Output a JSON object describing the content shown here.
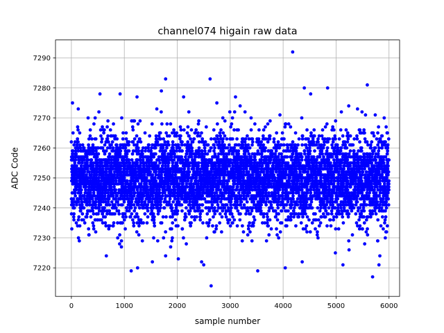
{
  "chart_data": {
    "type": "scatter",
    "title": "channel074 higain raw data",
    "xlabel": "sample number",
    "ylabel": "ADC Code",
    "xlim": [
      -300,
      6200
    ],
    "ylim": [
      7210.5,
      7296
    ],
    "xticks": [
      0,
      1000,
      2000,
      3000,
      4000,
      5000,
      6000
    ],
    "yticks": [
      7220,
      7230,
      7240,
      7250,
      7260,
      7270,
      7280,
      7290
    ],
    "grid": true,
    "legend": "none",
    "marker_color": "#0000ff",
    "num_samples": 6000,
    "y_center": 7250,
    "y_spread_sd": 7.5,
    "notable_points": [
      {
        "x": 4180,
        "y": 7292
      },
      {
        "x": 2620,
        "y": 7283
      },
      {
        "x": 1780,
        "y": 7283
      },
      {
        "x": 5590,
        "y": 7281
      },
      {
        "x": 4400,
        "y": 7280
      },
      {
        "x": 4840,
        "y": 7280
      },
      {
        "x": 1700,
        "y": 7279
      },
      {
        "x": 4520,
        "y": 7278
      },
      {
        "x": 920,
        "y": 7278
      },
      {
        "x": 540,
        "y": 7278
      },
      {
        "x": 1240,
        "y": 7277
      },
      {
        "x": 2120,
        "y": 7277
      },
      {
        "x": 3100,
        "y": 7277
      },
      {
        "x": 2640,
        "y": 7214
      },
      {
        "x": 5690,
        "y": 7217
      },
      {
        "x": 1130,
        "y": 7219
      },
      {
        "x": 3520,
        "y": 7219
      },
      {
        "x": 4040,
        "y": 7220
      },
      {
        "x": 1250,
        "y": 7220
      },
      {
        "x": 1530,
        "y": 7222
      },
      {
        "x": 2460,
        "y": 7222
      },
      {
        "x": 4360,
        "y": 7222
      },
      {
        "x": 5130,
        "y": 7221
      },
      {
        "x": 5810,
        "y": 7221
      },
      {
        "x": 2500,
        "y": 7221
      },
      {
        "x": 1780,
        "y": 7224
      },
      {
        "x": 660,
        "y": 7224
      },
      {
        "x": 2020,
        "y": 7223
      }
    ]
  }
}
